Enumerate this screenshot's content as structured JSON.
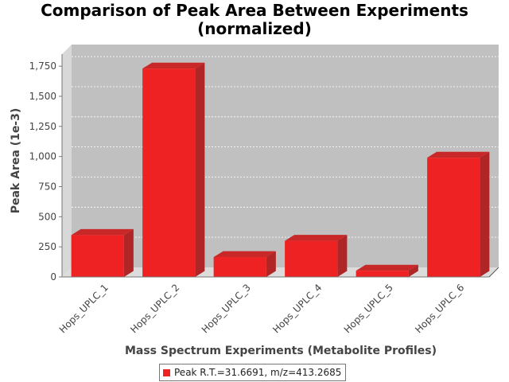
{
  "chart_data": {
    "type": "bar",
    "title": [
      "Comparison of Peak Area Between Experiments",
      "(normalized)"
    ],
    "xlabel": "Mass Spectrum Experiments (Metabolite Profiles)",
    "ylabel": "Peak Area (1e-3)",
    "categories": [
      "Hops_UPLC_1",
      "Hops_UPLC_2",
      "Hops_UPLC_3",
      "Hops_UPLC_4",
      "Hops_UPLC_5",
      "Hops_UPLC_6"
    ],
    "series": [
      {
        "name": "Peak R.T.=31.6691, m/z=413.2685",
        "values": [
          348,
          1730,
          165,
          300,
          52,
          990
        ]
      }
    ],
    "ylim": [
      0,
      1850
    ],
    "yticks": [
      0,
      250,
      500,
      750,
      1000,
      1250,
      1500,
      1750
    ],
    "ytick_labels": [
      "0",
      "250",
      "500",
      "750",
      "1,000",
      "1,250",
      "1,500",
      "1,750"
    ],
    "grid": true,
    "legend_position": "bottom",
    "colors": {
      "bar": "#ee2222",
      "bar_top": "#c82828",
      "bar_side": "#b02525",
      "plot_bg": "#c0c0c0",
      "wall": "#d8d8d8",
      "floor": "#dcdcdc"
    }
  }
}
